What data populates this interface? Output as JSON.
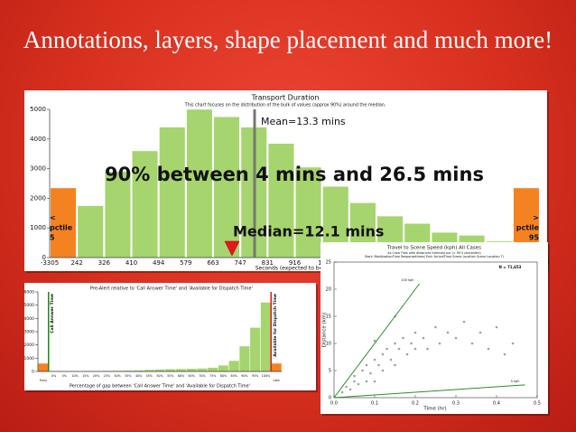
{
  "slide": {
    "title": "Annotations, layers, shape placement and much more!"
  },
  "chart_data": [
    {
      "type": "bar",
      "title": "Transport Duration",
      "subtitle": "This chart focuses on the distribution of the bulk of values (approx 90%) around the median.",
      "xlabel": "Seconds (expected to be",
      "categories": [
        "-3305",
        "242",
        "326",
        "410",
        "494",
        "579",
        "663",
        "747",
        "831",
        "916",
        "10",
        null,
        null,
        null,
        null,
        null,
        null,
        null
      ],
      "values": [
        2350,
        1750,
        2900,
        3600,
        4400,
        5000,
        4750,
        4400,
        3850,
        3050,
        2400,
        1850,
        1400,
        1150,
        850,
        750,
        550,
        2350
      ],
      "colors": [
        "#f58220",
        "#a6d46e",
        "#a6d46e",
        "#a6d46e",
        "#a6d46e",
        "#a6d46e",
        "#a6d46e",
        "#a6d46e",
        "#a6d46e",
        "#a6d46e",
        "#a6d46e",
        "#a6d46e",
        "#a6d46e",
        "#a6d46e",
        "#a6d46e",
        "#a6d46e",
        "#a6d46e",
        "#f58220"
      ],
      "ylim": [
        0,
        5000
      ],
      "yticks": [
        0,
        1000,
        2000,
        3000,
        4000,
        5000
      ],
      "x_end_label": "14",
      "annotations": {
        "mean": "Mean=13.3 mins",
        "range": "90% between 4 mins and 26.5 mins",
        "median": "Median=12.1 mins",
        "low": [
          "<",
          "pctile",
          "5"
        ],
        "high": [
          ">",
          "pctile",
          "95"
        ]
      }
    },
    {
      "type": "bar",
      "title": "Pre-Alert relative to 'Call Answer Time' and 'Available for Dispatch Time'",
      "xlabel": "Percentage of gap between 'Call Answer Time' and 'Available for Dispatch Time'",
      "categories": [
        "Early",
        "0%",
        "5%",
        "10%",
        "15%",
        "20%",
        "25%",
        "30%",
        "35%",
        "40%",
        "45%",
        "50%",
        "55%",
        "60%",
        "65%",
        "70%",
        "75%",
        "80%",
        "85%",
        "90%",
        "95%",
        "100%",
        "Late"
      ],
      "values": [
        600,
        20,
        20,
        20,
        30,
        30,
        40,
        50,
        60,
        80,
        120,
        150,
        170,
        180,
        200,
        220,
        280,
        450,
        800,
        1900,
        3300,
        5200,
        600
      ],
      "colors": [
        "#f58220",
        "#a6d46e",
        "#a6d46e",
        "#a6d46e",
        "#a6d46e",
        "#a6d46e",
        "#a6d46e",
        "#a6d46e",
        "#a6d46e",
        "#a6d46e",
        "#a6d46e",
        "#a6d46e",
        "#a6d46e",
        "#a6d46e",
        "#a6d46e",
        "#a6d46e",
        "#a6d46e",
        "#a6d46e",
        "#a6d46e",
        "#a6d46e",
        "#a6d46e",
        "#a6d46e",
        "#f58220"
      ],
      "ylim": [
        0,
        6000
      ],
      "yticks": [
        0,
        1000,
        2000,
        3000,
        4000,
        5000,
        6000
      ],
      "annotations": {
        "start": "Call Answer Time",
        "end": "Available for Dispatch Time"
      }
    },
    {
      "type": "scatter",
      "title": "Travel to Scene Speed (kph) All Cases",
      "subtitle": [
        "As Crow Flies with distances trimmed out (> 99.5 percentile)",
        "Start: MobilisationTime Responsetimes/ End: ArrivalTime Scene Location Scene Location T)"
      ],
      "xlabel": "Time (hr)",
      "ylabel": "Distance (km)",
      "note": "N = 71,653",
      "color": "#888888",
      "x": [
        0.02,
        0.03,
        0.04,
        0.05,
        0.05,
        0.06,
        0.07,
        0.08,
        0.08,
        0.09,
        0.1,
        0.1,
        0.11,
        0.12,
        0.12,
        0.13,
        0.14,
        0.15,
        0.15,
        0.16,
        0.17,
        0.18,
        0.19,
        0.2,
        0.2,
        0.22,
        0.23,
        0.25,
        0.26,
        0.28,
        0.3,
        0.32,
        0.34,
        0.36,
        0.38,
        0.4,
        0.42,
        0.44,
        0.15,
        0.1
      ],
      "y": [
        1,
        2,
        1.5,
        3,
        4,
        2.5,
        5,
        3,
        6,
        4.5,
        7,
        3,
        6,
        8,
        5,
        9,
        7,
        10,
        6,
        9,
        11,
        8,
        10,
        12,
        9,
        11,
        9,
        13,
        10,
        12,
        11,
        14,
        10,
        12,
        9,
        13,
        8,
        10,
        15,
        10.5
      ],
      "xlim": [
        0,
        0.5
      ],
      "xticks": [
        {
          "value": 0,
          "label": "0.0"
        },
        0.1,
        0.2,
        0.3,
        0.4,
        0.5
      ],
      "ylim": [
        0,
        25
      ],
      "yticks": [
        0,
        5,
        10,
        15,
        20,
        25
      ],
      "reference_lines": [
        {
          "name": "100 kph",
          "color": "#2e8b2e",
          "x": [
            0,
            0.21
          ],
          "y": [
            0,
            21
          ]
        },
        {
          "name": "5 kph",
          "color": "#2e8b2e",
          "x": [
            0,
            0.47
          ],
          "y": [
            0,
            2.35
          ]
        }
      ]
    }
  ]
}
